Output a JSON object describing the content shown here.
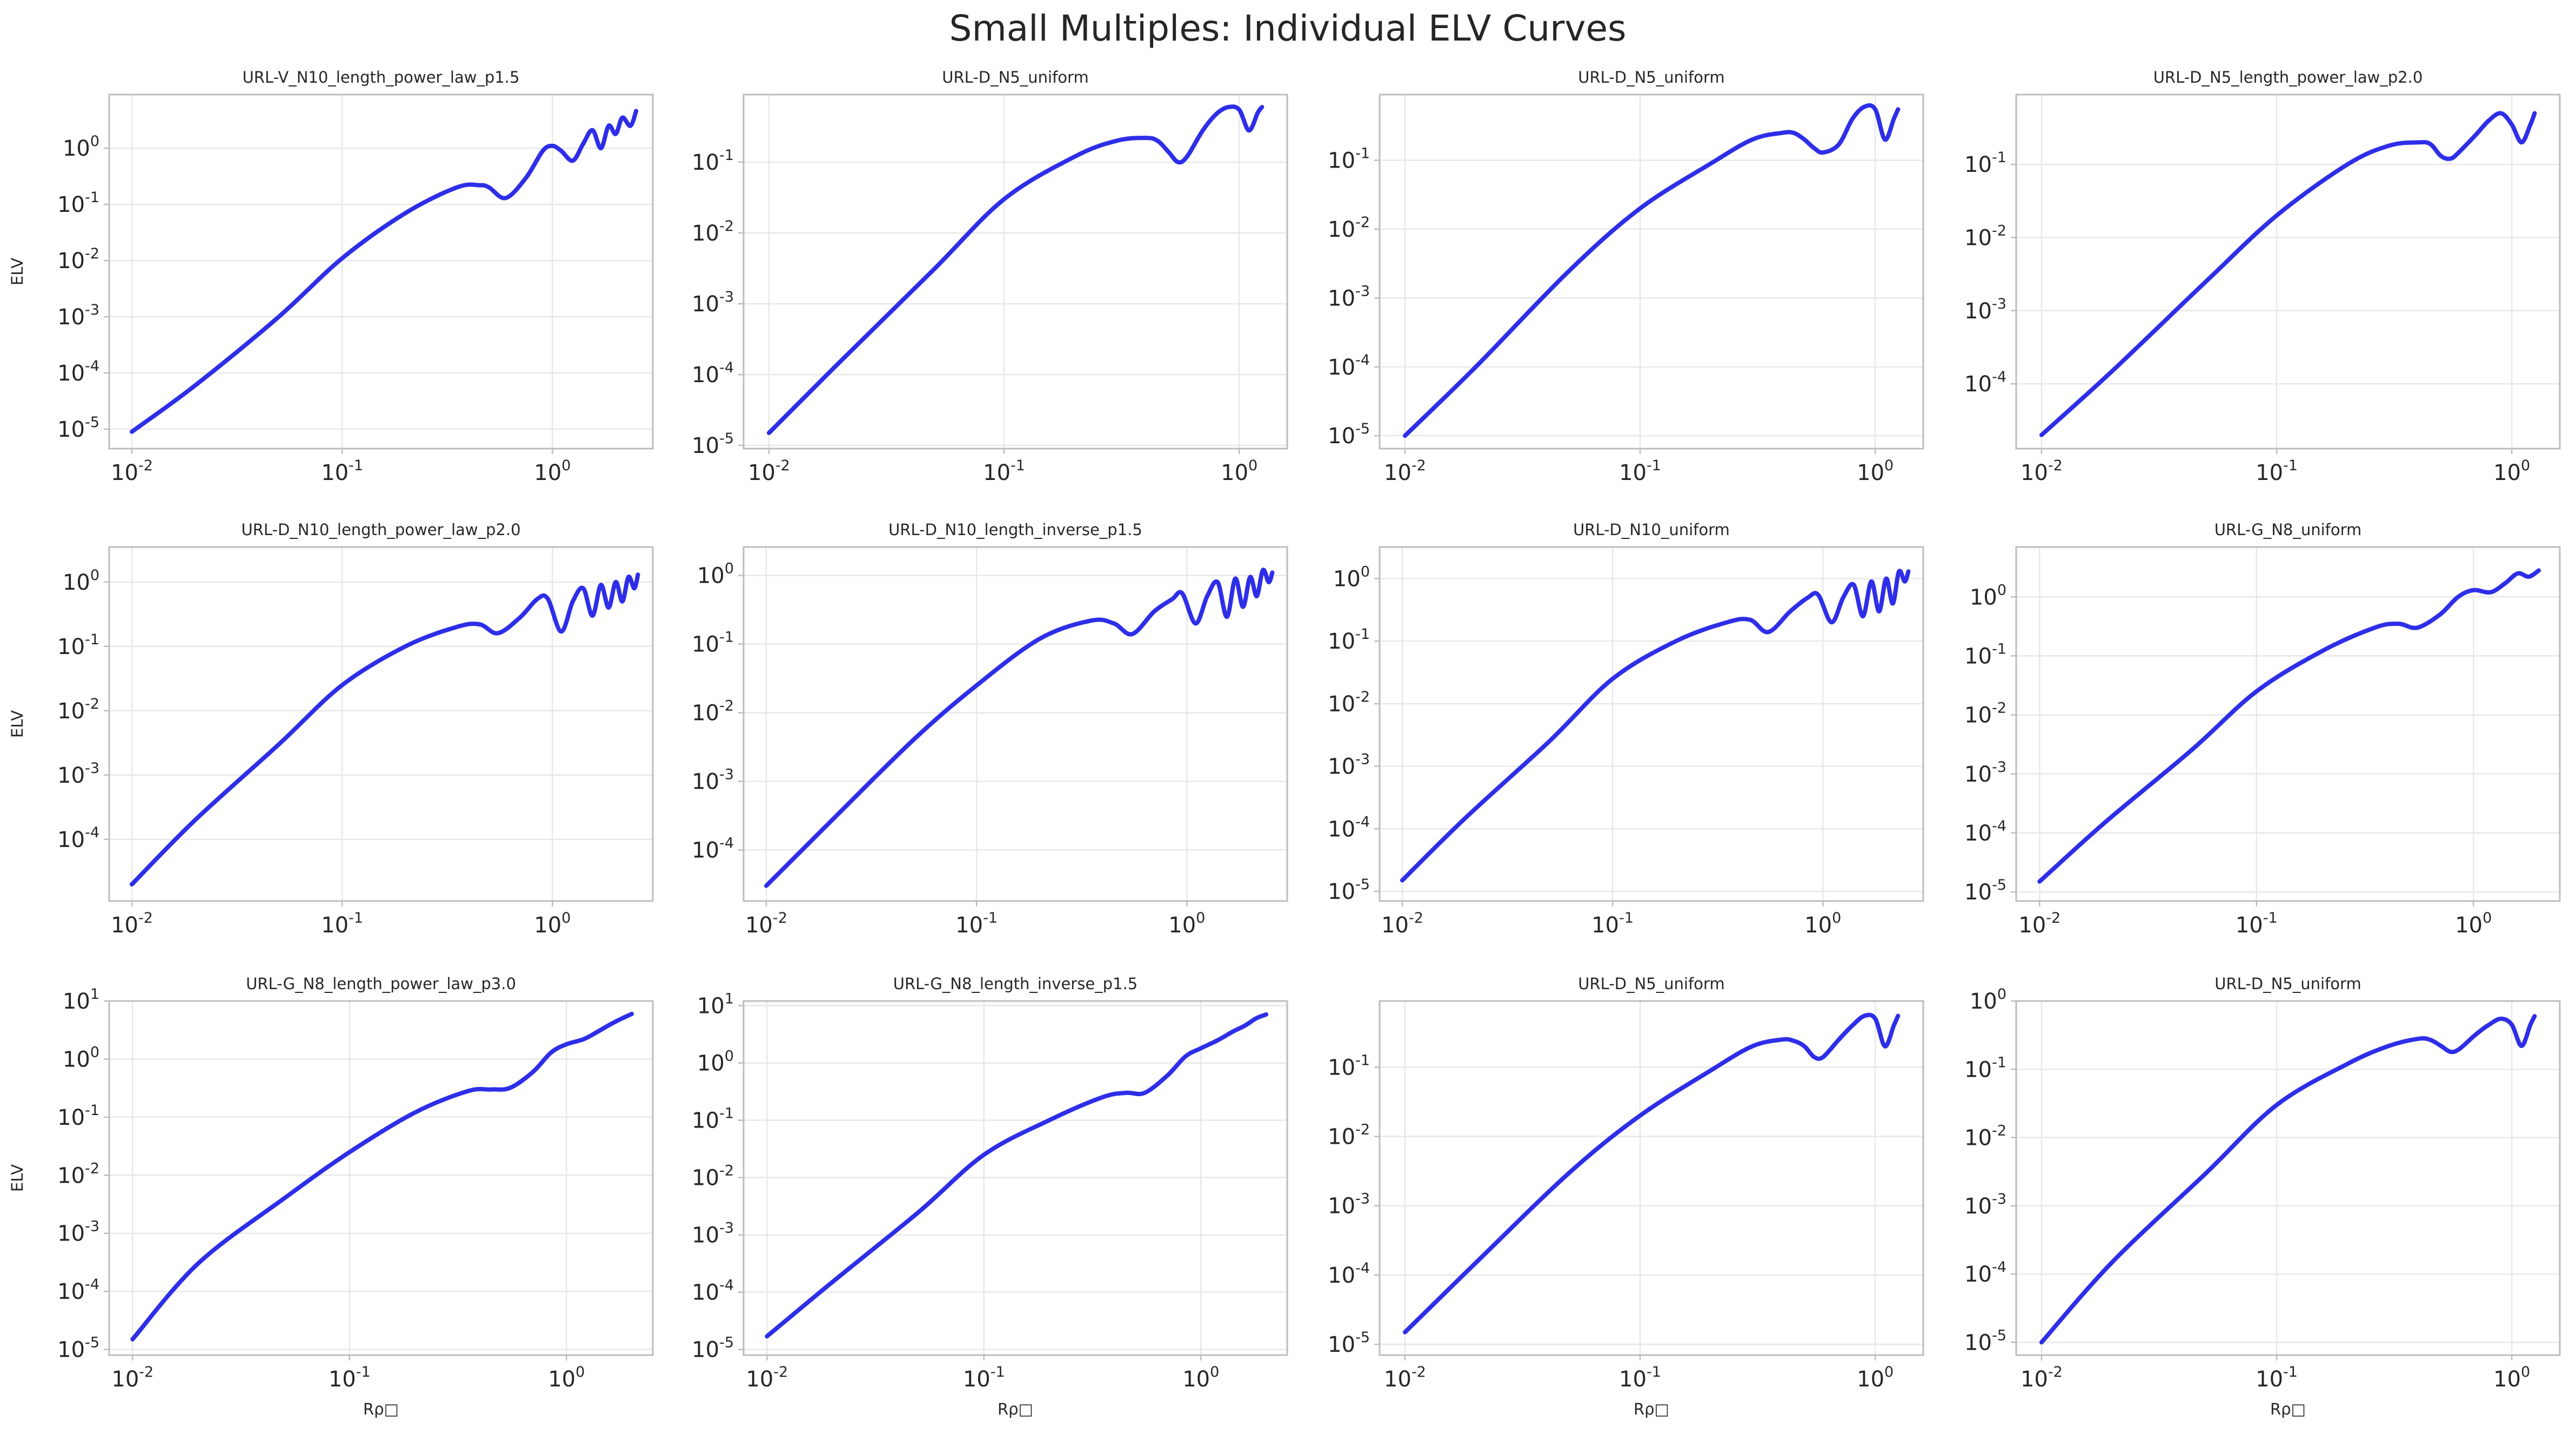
{
  "figure": {
    "title": "Small Multiples: Individual ELV Curves",
    "line_color": "#2e2ee8"
  },
  "chart_data": [
    {
      "type": "line",
      "title": "URL-V_N10_length_power_law_p1.5",
      "xlabel": "",
      "ylabel": "ELV",
      "xscale": "log",
      "yscale": "log",
      "xlim": [
        0.0078,
        3.0
      ],
      "ylim": [
        4.5e-06,
        9.0
      ],
      "grid": true,
      "x": [
        0.01,
        0.02,
        0.05,
        0.1,
        0.2,
        0.35,
        0.45,
        0.5,
        0.6,
        0.75,
        0.9,
        1.0,
        1.1,
        1.25,
        1.4,
        1.55,
        1.7,
        1.85,
        2.0,
        2.15,
        2.35,
        2.5
      ],
      "y": [
        9e-06,
        6e-05,
        0.001,
        0.011,
        0.07,
        0.2,
        0.22,
        0.2,
        0.13,
        0.3,
        0.9,
        1.1,
        0.9,
        0.6,
        1.2,
        2.1,
        1.0,
        2.5,
        1.8,
        3.5,
        2.5,
        4.6
      ]
    },
    {
      "type": "line",
      "title": "URL-D_N5_uniform",
      "xlabel": "",
      "ylabel": "",
      "xscale": "log",
      "yscale": "log",
      "xlim": [
        0.0078,
        1.6
      ],
      "ylim": [
        9e-06,
        0.9
      ],
      "grid": true,
      "x": [
        0.01,
        0.02,
        0.05,
        0.1,
        0.2,
        0.3,
        0.4,
        0.45,
        0.5,
        0.55,
        0.6,
        0.7,
        0.8,
        0.9,
        1.0,
        1.1,
        1.2,
        1.25
      ],
      "y": [
        1.5e-05,
        0.00015,
        0.003,
        0.03,
        0.12,
        0.2,
        0.22,
        0.2,
        0.14,
        0.1,
        0.12,
        0.28,
        0.48,
        0.6,
        0.55,
        0.28,
        0.5,
        0.6
      ]
    },
    {
      "type": "line",
      "title": "URL-D_N5_uniform",
      "xlabel": "",
      "ylabel": "",
      "xscale": "log",
      "yscale": "log",
      "xlim": [
        0.0078,
        1.6
      ],
      "ylim": [
        6.5e-06,
        0.9
      ],
      "grid": true,
      "x": [
        0.01,
        0.02,
        0.05,
        0.1,
        0.2,
        0.3,
        0.4,
        0.45,
        0.5,
        0.55,
        0.6,
        0.7,
        0.8,
        0.9,
        1.0,
        1.1,
        1.2,
        1.25
      ],
      "y": [
        1e-05,
        0.0001,
        0.0025,
        0.02,
        0.09,
        0.2,
        0.25,
        0.25,
        0.2,
        0.15,
        0.13,
        0.17,
        0.4,
        0.6,
        0.55,
        0.2,
        0.4,
        0.55
      ]
    },
    {
      "type": "line",
      "title": "URL-D_N5_length_power_law_p2.0",
      "xlabel": "",
      "ylabel": "",
      "xscale": "log",
      "yscale": "log",
      "xlim": [
        0.0078,
        1.6
      ],
      "ylim": [
        1.3e-05,
        0.9
      ],
      "grid": true,
      "x": [
        0.01,
        0.02,
        0.05,
        0.1,
        0.2,
        0.3,
        0.4,
        0.45,
        0.5,
        0.55,
        0.6,
        0.7,
        0.8,
        0.9,
        1.0,
        1.1,
        1.2,
        1.25
      ],
      "y": [
        2e-05,
        0.00015,
        0.0025,
        0.02,
        0.1,
        0.18,
        0.2,
        0.19,
        0.13,
        0.12,
        0.15,
        0.25,
        0.4,
        0.5,
        0.35,
        0.2,
        0.35,
        0.5
      ]
    },
    {
      "type": "line",
      "title": "URL-D_N10_length_power_law_p2.0",
      "xlabel": "",
      "ylabel": "ELV",
      "xscale": "log",
      "yscale": "log",
      "xlim": [
        0.0078,
        3.0
      ],
      "ylim": [
        1.1e-05,
        3.5
      ],
      "grid": true,
      "x": [
        0.01,
        0.02,
        0.05,
        0.1,
        0.2,
        0.35,
        0.45,
        0.55,
        0.7,
        0.85,
        0.95,
        1.1,
        1.25,
        1.4,
        1.55,
        1.7,
        1.85,
        2.0,
        2.15,
        2.3,
        2.45,
        2.55
      ],
      "y": [
        2e-05,
        0.0002,
        0.003,
        0.025,
        0.1,
        0.2,
        0.22,
        0.16,
        0.28,
        0.55,
        0.55,
        0.17,
        0.5,
        0.8,
        0.3,
        0.9,
        0.4,
        1.0,
        0.5,
        1.2,
        0.8,
        1.3
      ]
    },
    {
      "type": "line",
      "title": "URL-D_N10_length_inverse_p1.5",
      "xlabel": "",
      "ylabel": "",
      "xscale": "log",
      "yscale": "log",
      "xlim": [
        0.0078,
        3.0
      ],
      "ylim": [
        1.8e-05,
        2.6
      ],
      "grid": true,
      "x": [
        0.01,
        0.02,
        0.05,
        0.1,
        0.2,
        0.35,
        0.45,
        0.55,
        0.7,
        0.85,
        0.95,
        1.1,
        1.25,
        1.4,
        1.55,
        1.7,
        1.85,
        2.0,
        2.15,
        2.3,
        2.45,
        2.55
      ],
      "y": [
        3e-05,
        0.00025,
        0.004,
        0.025,
        0.12,
        0.22,
        0.2,
        0.14,
        0.3,
        0.45,
        0.55,
        0.2,
        0.5,
        0.8,
        0.25,
        0.9,
        0.35,
        0.95,
        0.5,
        1.2,
        0.8,
        1.1
      ]
    },
    {
      "type": "line",
      "title": "URL-D_N10_uniform",
      "xlabel": "",
      "ylabel": "",
      "xscale": "log",
      "yscale": "log",
      "xlim": [
        0.0078,
        3.0
      ],
      "ylim": [
        7e-06,
        3.2
      ],
      "grid": true,
      "x": [
        0.01,
        0.02,
        0.05,
        0.1,
        0.2,
        0.35,
        0.45,
        0.55,
        0.7,
        0.85,
        0.95,
        1.1,
        1.25,
        1.4,
        1.55,
        1.7,
        1.85,
        2.0,
        2.15,
        2.3,
        2.45,
        2.55
      ],
      "y": [
        1.5e-05,
        0.00015,
        0.0025,
        0.025,
        0.1,
        0.2,
        0.22,
        0.14,
        0.3,
        0.5,
        0.55,
        0.2,
        0.5,
        0.8,
        0.25,
        0.9,
        0.3,
        1.0,
        0.4,
        1.3,
        0.9,
        1.3
      ]
    },
    {
      "type": "line",
      "title": "URL-G_N8_uniform",
      "xlabel": "",
      "ylabel": "",
      "xscale": "log",
      "yscale": "log",
      "xlim": [
        0.0078,
        2.5
      ],
      "ylim": [
        7e-06,
        7.0
      ],
      "grid": true,
      "x": [
        0.01,
        0.02,
        0.05,
        0.1,
        0.2,
        0.35,
        0.45,
        0.55,
        0.7,
        0.85,
        1.0,
        1.2,
        1.4,
        1.6,
        1.8,
        2.0
      ],
      "y": [
        1.5e-05,
        0.00015,
        0.0025,
        0.025,
        0.12,
        0.3,
        0.35,
        0.3,
        0.5,
        1.0,
        1.3,
        1.2,
        1.7,
        2.5,
        2.2,
        2.8
      ]
    },
    {
      "type": "line",
      "title": "URL-G_N8_length_power_law_p3.0",
      "xlabel": "Rρ□",
      "ylabel": "ELV",
      "xscale": "log",
      "yscale": "log",
      "xlim": [
        0.0078,
        2.5
      ],
      "ylim": [
        8e-06,
        10
      ],
      "grid": true,
      "x": [
        0.01,
        0.02,
        0.05,
        0.1,
        0.2,
        0.35,
        0.45,
        0.55,
        0.7,
        0.85,
        1.0,
        1.2,
        1.4,
        1.6,
        1.8,
        2.0
      ],
      "y": [
        1.5e-05,
        0.0003,
        0.004,
        0.025,
        0.12,
        0.28,
        0.3,
        0.32,
        0.6,
        1.3,
        1.8,
        2.2,
        3.0,
        4.0,
        5.0,
        6.0
      ]
    },
    {
      "type": "line",
      "title": "URL-G_N8_length_inverse_p1.5",
      "xlabel": "Rρ□",
      "ylabel": "",
      "xscale": "log",
      "yscale": "log",
      "xlim": [
        0.0078,
        2.5
      ],
      "ylim": [
        8e-06,
        12
      ],
      "grid": true,
      "x": [
        0.01,
        0.02,
        0.05,
        0.1,
        0.2,
        0.35,
        0.45,
        0.55,
        0.7,
        0.85,
        1.0,
        1.2,
        1.4,
        1.6,
        1.8,
        2.0
      ],
      "y": [
        1.7e-05,
        0.00015,
        0.0025,
        0.025,
        0.1,
        0.25,
        0.3,
        0.3,
        0.6,
        1.3,
        1.8,
        2.5,
        3.5,
        4.5,
        6.0,
        7.0
      ]
    },
    {
      "type": "line",
      "title": "URL-D_N5_uniform",
      "xlabel": "Rρ□",
      "ylabel": "",
      "xscale": "log",
      "yscale": "log",
      "xlim": [
        0.0078,
        1.6
      ],
      "ylim": [
        7e-06,
        0.9
      ],
      "grid": true,
      "x": [
        0.01,
        0.02,
        0.05,
        0.1,
        0.2,
        0.3,
        0.4,
        0.45,
        0.5,
        0.55,
        0.6,
        0.7,
        0.8,
        0.9,
        1.0,
        1.1,
        1.2,
        1.25
      ],
      "y": [
        1.5e-05,
        0.00015,
        0.003,
        0.02,
        0.09,
        0.2,
        0.25,
        0.24,
        0.2,
        0.14,
        0.14,
        0.25,
        0.4,
        0.55,
        0.5,
        0.2,
        0.4,
        0.55
      ]
    },
    {
      "type": "line",
      "title": "URL-D_N5_uniform",
      "xlabel": "Rρ□",
      "ylabel": "",
      "xscale": "log",
      "yscale": "log",
      "xlim": [
        0.0078,
        1.6
      ],
      "ylim": [
        6.5e-06,
        1.0
      ],
      "grid": true,
      "x": [
        0.01,
        0.02,
        0.05,
        0.1,
        0.2,
        0.3,
        0.4,
        0.45,
        0.5,
        0.55,
        0.6,
        0.7,
        0.8,
        0.9,
        1.0,
        1.1,
        1.2,
        1.25
      ],
      "y": [
        1e-05,
        0.00015,
        0.003,
        0.03,
        0.12,
        0.22,
        0.28,
        0.27,
        0.22,
        0.18,
        0.2,
        0.32,
        0.45,
        0.55,
        0.45,
        0.22,
        0.45,
        0.6
      ]
    }
  ]
}
